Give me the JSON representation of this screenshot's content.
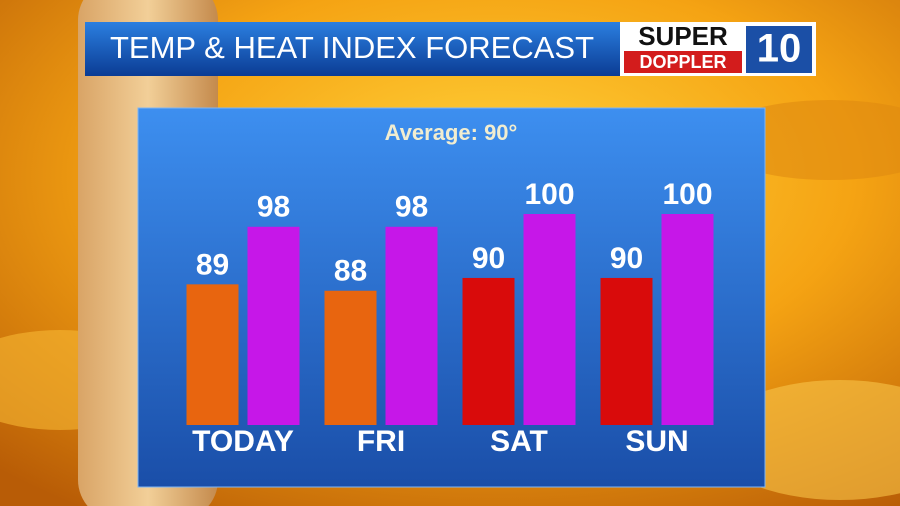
{
  "chart_data": {
    "type": "bar",
    "title": "TEMP & HEAT INDEX FORECAST",
    "subtitle": "Average: 90°",
    "logo": {
      "top": "SUPER",
      "bottom": "DOPPLER",
      "number": "10"
    },
    "categories": [
      "TODAY",
      "FRI",
      "SAT",
      "SUN"
    ],
    "series": [
      {
        "colors": [
          "#e8650f",
          "#e8650f",
          "#d90b0b",
          "#d90b0b"
        ],
        "values": [
          89,
          88,
          90,
          90
        ]
      },
      {
        "color": "#c617e8",
        "values": [
          98,
          98,
          100,
          100
        ]
      }
    ],
    "ylim": [
      67,
      100
    ]
  }
}
